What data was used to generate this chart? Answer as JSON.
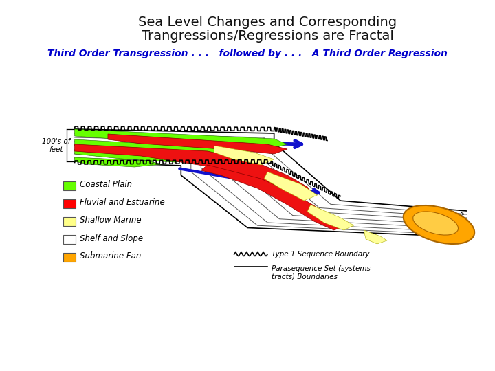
{
  "title_line1": "Sea Level Changes and Corresponding",
  "title_line2": "Trangressions/Regressions are Fractal",
  "subtitle": "Third Order Transgression . . .   followed by . . .   A Third Order Regression",
  "subtitle_color": "#0000CC",
  "title_color": "#111111",
  "bg_color": "#FFFFFF",
  "legend_items": [
    {
      "label": "Coastal Plain",
      "color": "#66FF00"
    },
    {
      "label": "Fluvial and Estuarine",
      "color": "#FF0000"
    },
    {
      "label": "Shallow Marine",
      "color": "#FFFF88"
    },
    {
      "label": "Shelf and Slope",
      "color": "#FFFFFF"
    },
    {
      "label": "Submarine Fan",
      "color": "#FFA500"
    }
  ],
  "legend_line1_label": "Type 1 Sequence Boundary",
  "legend_line2_label": "Parasequence Set (systems\ntracts) Boundaries",
  "ylabel_text": "100's of\nfeet"
}
